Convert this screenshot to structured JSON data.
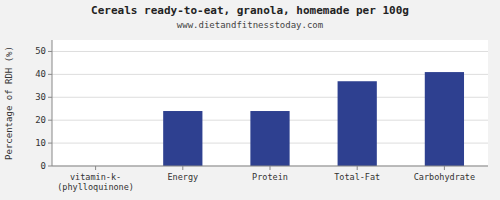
{
  "chart_data": {
    "type": "bar",
    "title": "Cereals ready-to-eat, granola, homemade per 100g",
    "subtitle": "www.dietandfitnesstoday.com",
    "ylabel": "Percentage of RDH (%)",
    "categories": [
      "vitamin-k-(phylloquinone)",
      "Energy",
      "Protein",
      "Total-Fat",
      "Carbohydrate"
    ],
    "values": [
      0,
      24,
      24,
      37,
      41
    ],
    "color": "#2e4090",
    "ylim": [
      0,
      55
    ],
    "yticks": [
      0,
      10,
      20,
      30,
      40,
      50
    ],
    "grid": true
  }
}
